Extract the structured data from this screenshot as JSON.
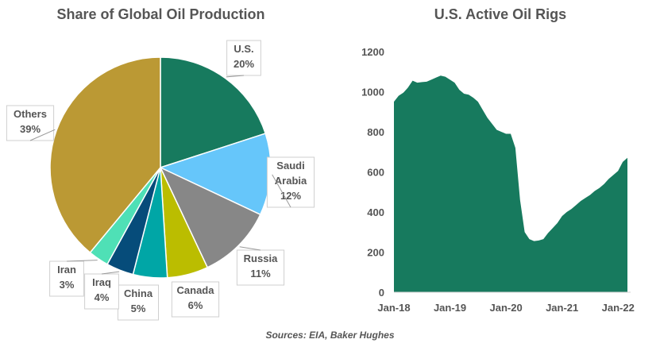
{
  "colors": {
    "text": "#555555",
    "us": "#177A5E",
    "saudi": "#66C6FA",
    "russia": "#878787",
    "canada": "#BBBD00",
    "china": "#00A6A6",
    "iraq": "#064C7A",
    "iran": "#4FE0B6",
    "others": "#BB9934",
    "area_fill": "#177A5E"
  },
  "chart_data": [
    {
      "type": "pie",
      "title": "Share of Global Oil Production",
      "slices": [
        {
          "label_line1": "U.S.",
          "label_line2": "",
          "percent_label": "20%",
          "value": 20,
          "color_key": "us"
        },
        {
          "label_line1": "Saudi",
          "label_line2": "Arabia",
          "percent_label": "12%",
          "value": 12,
          "color_key": "saudi"
        },
        {
          "label_line1": "Russia",
          "label_line2": "",
          "percent_label": "11%",
          "value": 11,
          "color_key": "russia"
        },
        {
          "label_line1": "Canada",
          "label_line2": "",
          "percent_label": "6%",
          "value": 6,
          "color_key": "canada"
        },
        {
          "label_line1": "China",
          "label_line2": "",
          "percent_label": "5%",
          "value": 5,
          "color_key": "china"
        },
        {
          "label_line1": "Iraq",
          "label_line2": "",
          "percent_label": "4%",
          "value": 4,
          "color_key": "iraq"
        },
        {
          "label_line1": "Iran",
          "label_line2": "",
          "percent_label": "3%",
          "value": 3,
          "color_key": "iran"
        },
        {
          "label_line1": "Others",
          "label_line2": "",
          "percent_label": "39%",
          "value": 39,
          "color_key": "others"
        }
      ]
    },
    {
      "type": "area",
      "title": "U.S. Active Oil Rigs",
      "xlabel": "",
      "ylabel": "",
      "ylim": [
        0,
        1200
      ],
      "yticks": [
        0,
        200,
        400,
        600,
        800,
        1000,
        1200
      ],
      "xtick_labels": [
        "Jan-18",
        "Jan-19",
        "Jan-20",
        "Jan-21",
        "Jan-22"
      ],
      "xtick_dates": [
        "2018-01",
        "2019-01",
        "2020-01",
        "2021-01",
        "2022-01"
      ],
      "xlim": [
        "2018-01",
        "2022-03"
      ],
      "grid": false,
      "series": [
        {
          "points": [
            [
              "2018-01",
              950
            ],
            [
              "2018-02",
              980
            ],
            [
              "2018-03",
              995
            ],
            [
              "2018-04",
              1020
            ],
            [
              "2018-05",
              1055
            ],
            [
              "2018-06",
              1045
            ],
            [
              "2018-07",
              1048
            ],
            [
              "2018-08",
              1050
            ],
            [
              "2018-09",
              1060
            ],
            [
              "2018-10",
              1070
            ],
            [
              "2018-11",
              1080
            ],
            [
              "2018-12",
              1075
            ],
            [
              "2019-01",
              1060
            ],
            [
              "2019-02",
              1045
            ],
            [
              "2019-03",
              1010
            ],
            [
              "2019-04",
              990
            ],
            [
              "2019-05",
              985
            ],
            [
              "2019-06",
              970
            ],
            [
              "2019-07",
              950
            ],
            [
              "2019-08",
              910
            ],
            [
              "2019-09",
              870
            ],
            [
              "2019-10",
              840
            ],
            [
              "2019-11",
              810
            ],
            [
              "2019-12",
              800
            ],
            [
              "2020-01",
              790
            ],
            [
              "2020-02",
              790
            ],
            [
              "2020-03",
              720
            ],
            [
              "2020-04",
              460
            ],
            [
              "2020-05",
              300
            ],
            [
              "2020-06",
              265
            ],
            [
              "2020-07",
              255
            ],
            [
              "2020-08",
              258
            ],
            [
              "2020-09",
              265
            ],
            [
              "2020-10",
              295
            ],
            [
              "2020-11",
              320
            ],
            [
              "2020-12",
              345
            ],
            [
              "2021-01",
              380
            ],
            [
              "2021-02",
              400
            ],
            [
              "2021-03",
              415
            ],
            [
              "2021-04",
              435
            ],
            [
              "2021-05",
              455
            ],
            [
              "2021-06",
              470
            ],
            [
              "2021-07",
              485
            ],
            [
              "2021-08",
              505
            ],
            [
              "2021-09",
              520
            ],
            [
              "2021-10",
              540
            ],
            [
              "2021-11",
              565
            ],
            [
              "2021-12",
              585
            ],
            [
              "2022-01",
              605
            ],
            [
              "2022-02",
              650
            ],
            [
              "2022-03",
              670
            ]
          ]
        }
      ]
    }
  ],
  "footer": {
    "source": "Sources: EIA, Baker Hughes"
  }
}
